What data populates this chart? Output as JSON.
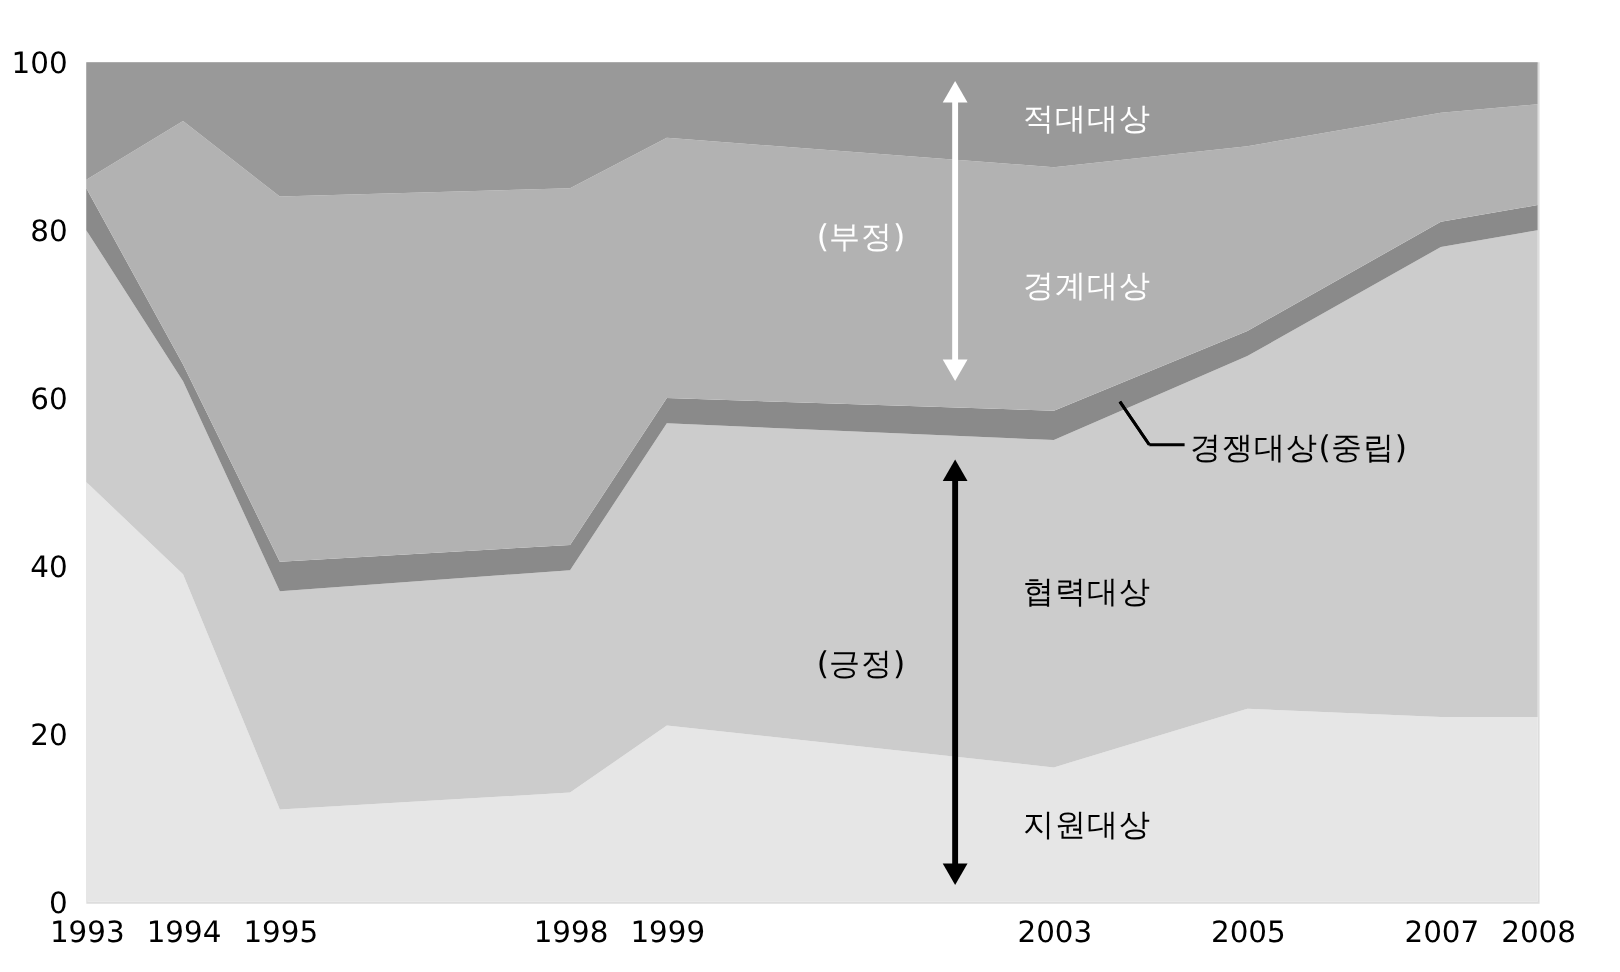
{
  "chart_data": {
    "type": "area",
    "stacked": true,
    "grid": false,
    "x": [
      1993,
      1994,
      1995,
      1998,
      1999,
      2003,
      2005,
      2007,
      2008
    ],
    "xlim": [
      1993,
      2008
    ],
    "xticks": [
      1993,
      1994,
      1995,
      1998,
      1999,
      2003,
      2005,
      2007,
      2008
    ],
    "ylim": [
      0,
      100
    ],
    "yticks": [
      0,
      20,
      40,
      60,
      80,
      100
    ],
    "series": [
      {
        "name": "지원대상",
        "color": "#e6e6e6",
        "values": [
          50,
          39,
          11,
          13,
          21,
          16,
          23,
          22,
          22
        ]
      },
      {
        "name": "협력대상",
        "color": "#cccccc",
        "values": [
          30,
          23,
          26,
          26.5,
          36,
          39,
          42,
          56,
          58
        ]
      },
      {
        "name": "경쟁대상(중립)",
        "color": "#8a8a8a",
        "values": [
          5,
          2,
          3.5,
          3,
          3,
          3.5,
          3,
          3,
          3
        ]
      },
      {
        "name": "경계대상",
        "color": "#b2b2b2",
        "values": [
          1,
          29,
          43.5,
          42.5,
          31,
          29,
          22,
          13,
          12
        ]
      },
      {
        "name": "적대대상",
        "color": "#999999",
        "values": [
          14,
          7,
          16,
          15,
          9,
          12.5,
          10,
          6,
          5
        ]
      }
    ],
    "annotations": [
      "(부정)",
      "(긍정)"
    ]
  }
}
